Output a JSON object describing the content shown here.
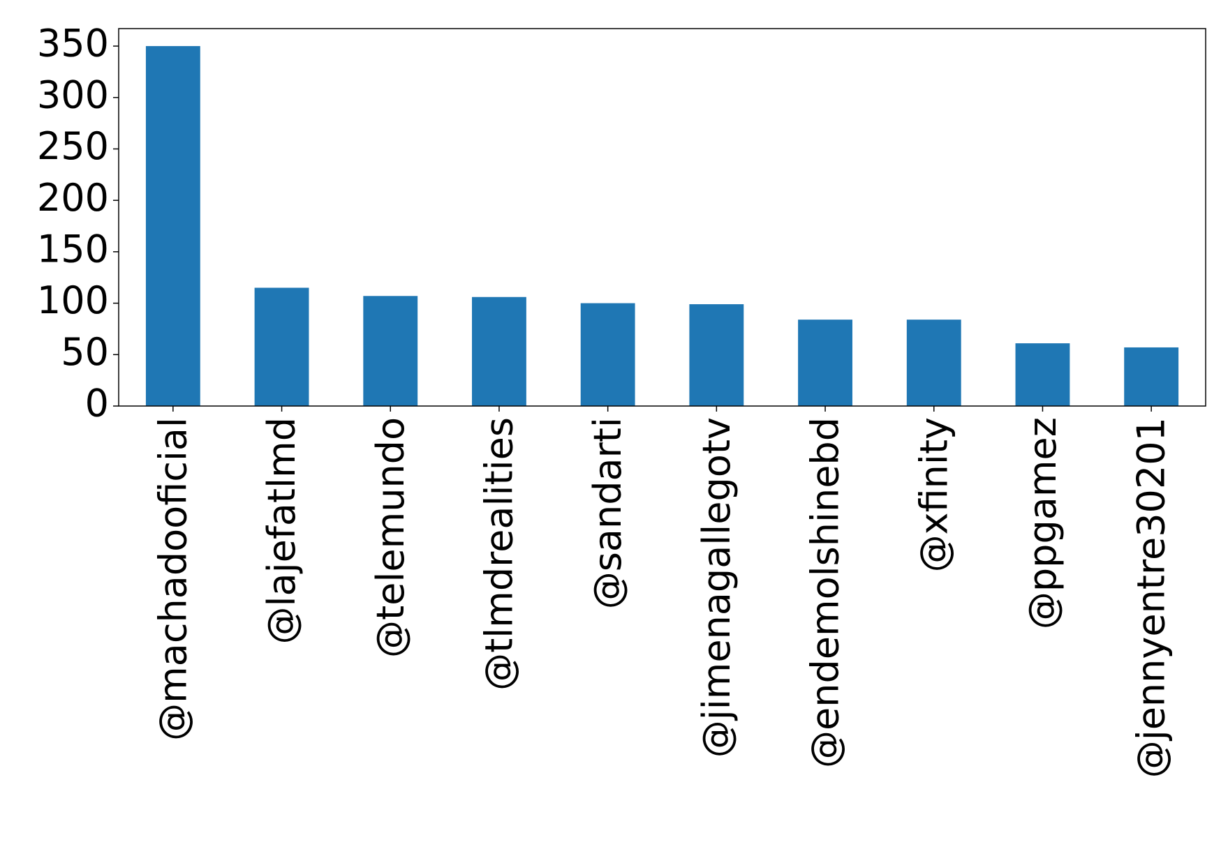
{
  "chart_data": {
    "type": "bar",
    "categories": [
      "@machadooficial",
      "@lajefatlmd",
      "@telemundo",
      "@tlmdrealities",
      "@sandarti",
      "@jimenagallegotv",
      "@endemolshinebd",
      "@xfinity",
      "@ppgamez",
      "@jennyentre30201"
    ],
    "values": [
      350,
      115,
      107,
      106,
      100,
      99,
      84,
      84,
      61,
      57
    ],
    "title": "",
    "xlabel": "",
    "ylabel": "",
    "ylim": [
      0,
      367
    ],
    "yticks": [
      0,
      50,
      100,
      150,
      200,
      250,
      300,
      350
    ],
    "grid": false,
    "colors": {
      "bar": "#1f77b4",
      "axis": "#000000",
      "background": "#ffffff"
    }
  }
}
